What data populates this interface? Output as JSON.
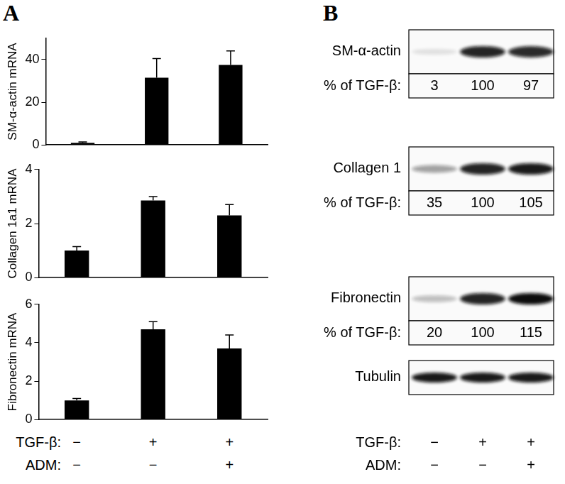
{
  "panel_labels": [
    "A",
    "B"
  ],
  "chart_data": [
    {
      "type": "bar",
      "y_label": "SM-α-actin mRNA",
      "categories": [
        null,
        null,
        null
      ],
      "values": [
        1,
        31.5,
        37.5
      ],
      "errors": [
        0.4,
        9,
        6.5
      ],
      "color": "#000000",
      "ylim": [
        0,
        50
      ],
      "yticks": [
        0,
        20,
        40
      ],
      "grid": false,
      "tick_labels": "y"
    },
    {
      "type": "bar",
      "y_label": "Collagen 1a1 mRNA",
      "categories": [
        null,
        null,
        null
      ],
      "values": [
        1,
        2.85,
        2.3
      ],
      "errors": [
        0.15,
        0.15,
        0.4
      ],
      "color": "#000000",
      "ylim": [
        0,
        4
      ],
      "yticks": [
        0,
        2,
        4
      ],
      "grid": false,
      "tick_labels": "y"
    },
    {
      "type": "bar",
      "y_label": "Fibronectin mRNA",
      "categories": [
        null,
        null,
        null
      ],
      "values": [
        1,
        4.7,
        3.7
      ],
      "errors": [
        0.1,
        0.4,
        0.7
      ],
      "color": "#000000",
      "ylim": [
        0,
        6
      ],
      "yticks": [
        0,
        2,
        4,
        6
      ],
      "grid": false,
      "tick_labels": "y"
    }
  ],
  "treatments": [
    {
      "label": "TGF-β:",
      "marks": [
        "−",
        "+",
        "+"
      ]
    },
    {
      "label": "ADM:",
      "marks": [
        "−",
        "−",
        "+"
      ]
    }
  ],
  "values_label": "% of TGF-β:",
  "blots": [
    {
      "label": "SM-α-actin",
      "values": [
        3,
        100,
        97
      ]
    },
    {
      "label": "Collagen 1",
      "values": [
        35,
        100,
        105
      ]
    },
    {
      "label": "Fibronectin",
      "values": [
        20,
        100,
        115
      ]
    },
    {
      "label": "Tubulin"
    }
  ]
}
